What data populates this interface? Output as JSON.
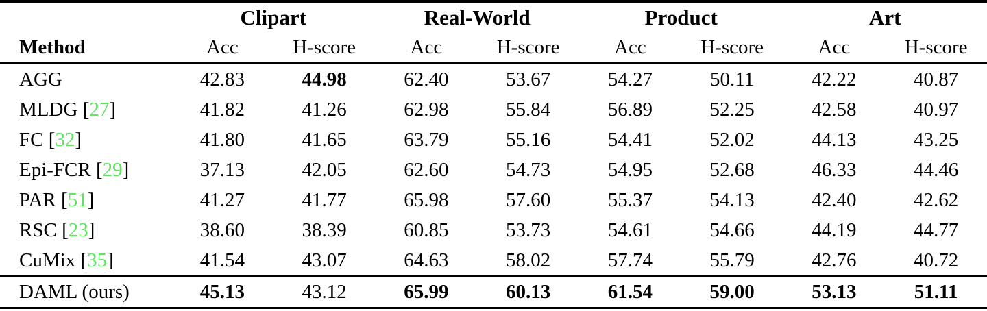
{
  "table": {
    "method_label": "Method",
    "groups": [
      "Clipart",
      "Real-World",
      "Product",
      "Art"
    ],
    "subcols": [
      "Acc",
      "H-score"
    ],
    "rows": [
      {
        "method": "AGG",
        "cite": null,
        "values": [
          "42.83",
          "44.98",
          "62.40",
          "53.67",
          "54.27",
          "50.11",
          "42.22",
          "40.87"
        ],
        "bold": [
          false,
          true,
          false,
          false,
          false,
          false,
          false,
          false
        ],
        "ours": false
      },
      {
        "method": "MLDG",
        "cite": "27",
        "values": [
          "41.82",
          "41.26",
          "62.98",
          "55.84",
          "56.89",
          "52.25",
          "42.58",
          "40.97"
        ],
        "bold": [
          false,
          false,
          false,
          false,
          false,
          false,
          false,
          false
        ],
        "ours": false
      },
      {
        "method": "FC",
        "cite": "32",
        "values": [
          "41.80",
          "41.65",
          "63.79",
          "55.16",
          "54.41",
          "52.02",
          "44.13",
          "43.25"
        ],
        "bold": [
          false,
          false,
          false,
          false,
          false,
          false,
          false,
          false
        ],
        "ours": false
      },
      {
        "method": "Epi-FCR",
        "cite": "29",
        "values": [
          "37.13",
          "42.05",
          "62.60",
          "54.73",
          "54.95",
          "52.68",
          "46.33",
          "44.46"
        ],
        "bold": [
          false,
          false,
          false,
          false,
          false,
          false,
          false,
          false
        ],
        "ours": false
      },
      {
        "method": "PAR",
        "cite": "51",
        "values": [
          "41.27",
          "41.77",
          "65.98",
          "57.60",
          "55.37",
          "54.13",
          "42.40",
          "42.62"
        ],
        "bold": [
          false,
          false,
          false,
          false,
          false,
          false,
          false,
          false
        ],
        "ours": false
      },
      {
        "method": "RSC",
        "cite": "23",
        "values": [
          "38.60",
          "38.39",
          "60.85",
          "53.73",
          "54.61",
          "54.66",
          "44.19",
          "44.77"
        ],
        "bold": [
          false,
          false,
          false,
          false,
          false,
          false,
          false,
          false
        ],
        "ours": false
      },
      {
        "method": "CuMix",
        "cite": "35",
        "values": [
          "41.54",
          "43.07",
          "64.63",
          "58.02",
          "57.74",
          "55.79",
          "42.76",
          "40.72"
        ],
        "bold": [
          false,
          false,
          false,
          false,
          false,
          false,
          false,
          false
        ],
        "ours": false
      },
      {
        "method": "DAML (ours)",
        "cite": null,
        "values": [
          "45.13",
          "43.12",
          "65.99",
          "60.13",
          "61.54",
          "59.00",
          "53.13",
          "51.11"
        ],
        "bold": [
          true,
          false,
          true,
          true,
          true,
          true,
          true,
          true
        ],
        "ours": true
      }
    ]
  },
  "colors": {
    "citation_green": "#5DE35D",
    "rule_black": "#000000",
    "text_black": "#000000",
    "background": "#FFFFFF"
  }
}
